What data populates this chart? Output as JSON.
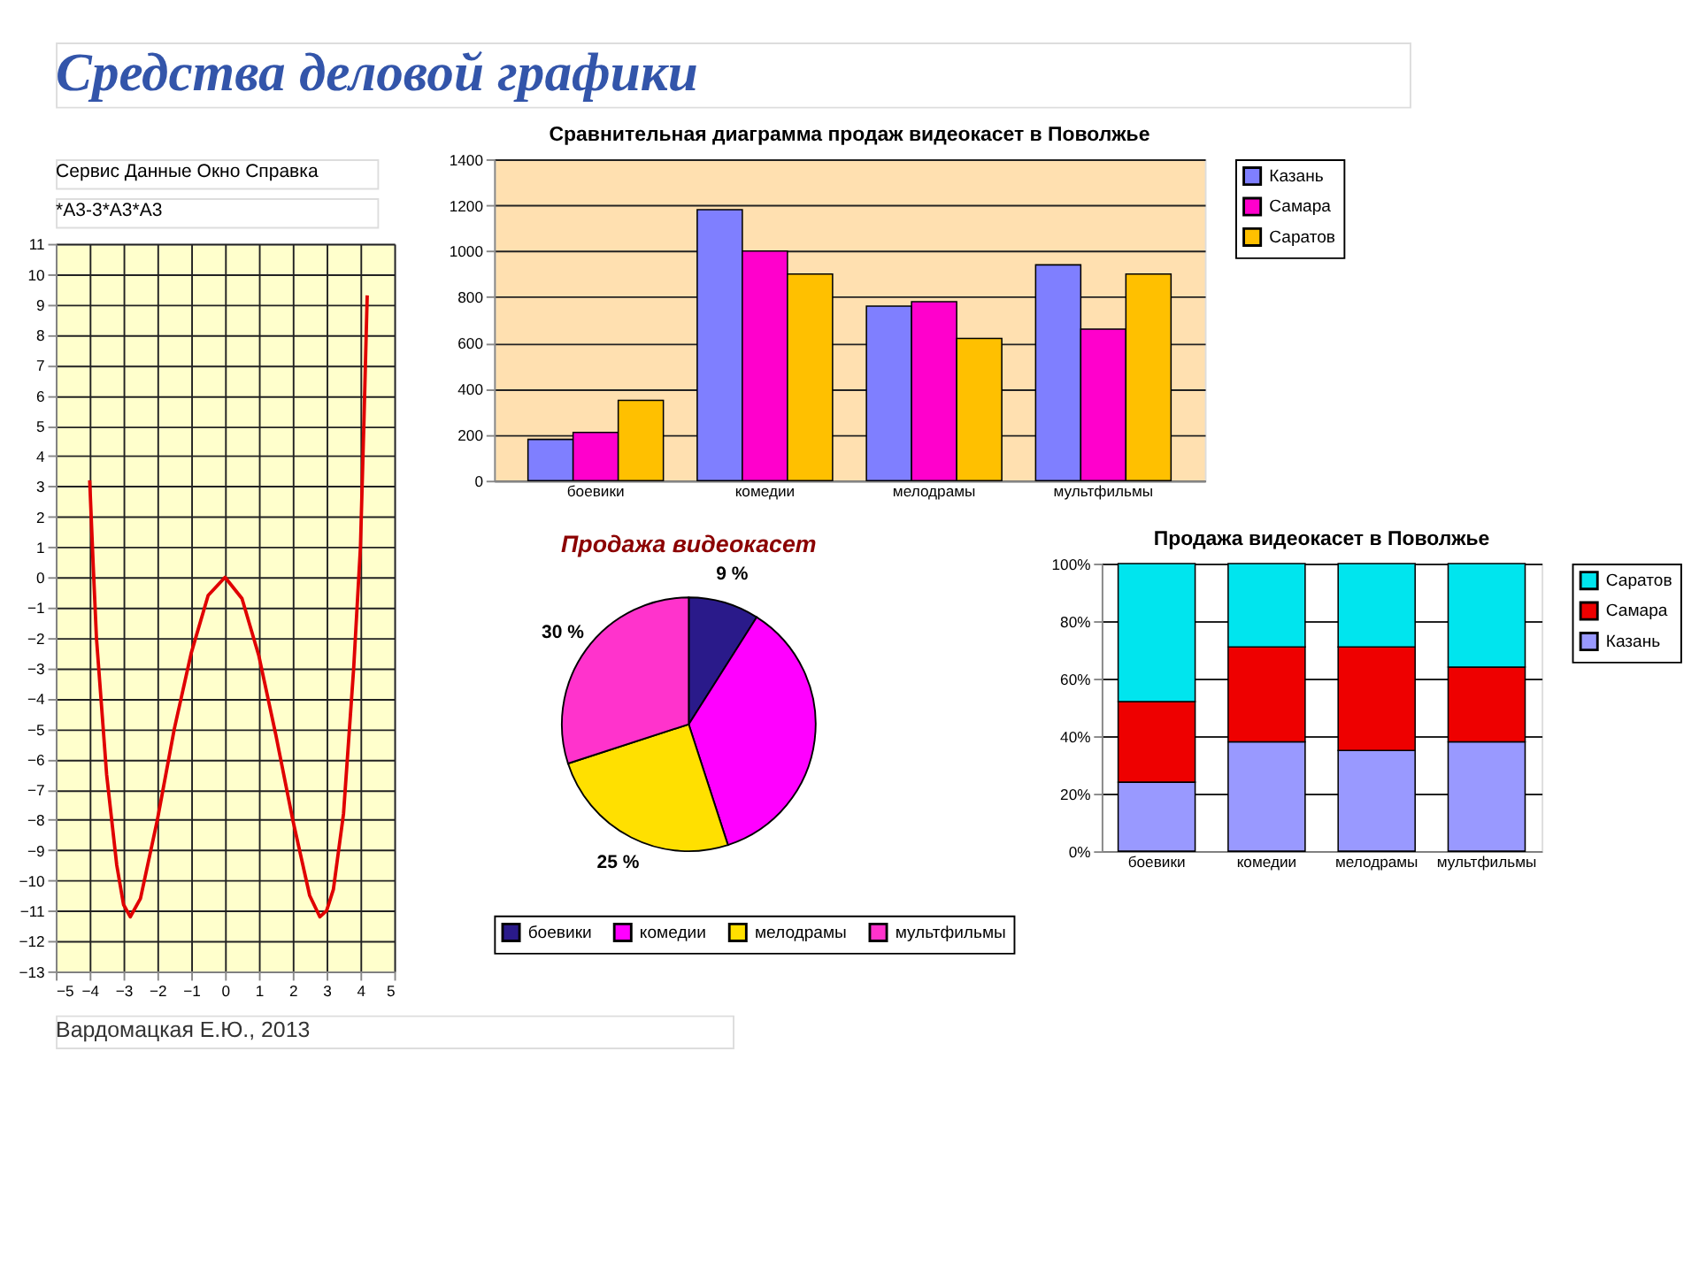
{
  "chart_data": [
    {
      "type": "line",
      "title": "Средства деловой графики",
      "annotations": [
        "Сервис   Данные   Окно   Справка",
        "*A3-3*A3*A3",
        "Вардомацкая Е.Ю., 2013"
      ],
      "series": [
        {
          "color": "#e00000",
          "x": [
            -4.0,
            -3.9,
            -3.8,
            -3.5,
            -3.2,
            -3.0,
            -2.8,
            -2.5,
            -2.0,
            -1.5,
            -1.0,
            -0.5,
            0.0,
            0.5,
            1.0,
            1.5,
            2.0,
            2.5,
            2.8,
            3.0,
            3.2,
            3.5,
            3.8,
            4.0,
            4.1,
            4.2
          ],
          "values": [
            3.2,
            0.5,
            -2.0,
            -6.5,
            -9.5,
            -10.8,
            -11.2,
            -10.6,
            -8.0,
            -5.0,
            -2.5,
            -0.6,
            0.0,
            -0.7,
            -2.6,
            -5.2,
            -8.0,
            -10.5,
            -11.2,
            -11.0,
            -10.3,
            -7.8,
            -3.0,
            1.0,
            5.0,
            9.3
          ]
        }
      ],
      "xlim": [
        -5,
        5
      ],
      "xticks": [
        -5,
        -4,
        -3,
        -2,
        -1,
        0,
        1,
        2,
        3,
        4,
        5
      ],
      "ylim": [
        -13,
        11
      ],
      "yticks": [
        -13,
        -12,
        -11,
        -10,
        -9,
        -8,
        -7,
        -6,
        -5,
        -4,
        -3,
        -2,
        -1,
        0,
        1,
        2,
        3,
        4,
        5,
        6,
        7,
        8,
        9,
        10,
        11
      ],
      "grid": true,
      "marker": "none",
      "line_style": "solid"
    },
    {
      "type": "bar",
      "title": "Сравнительная диаграмма продаж видеокасет в Поволжье",
      "categories": [
        "боевики",
        "комедии",
        "мелодрамы",
        "мультфильмы"
      ],
      "series": [
        {
          "name": "Казань",
          "color": "#7f7fff",
          "values": [
            180,
            1180,
            760,
            940
          ]
        },
        {
          "name": "Самара",
          "color": "#ff00cc",
          "values": [
            210,
            1000,
            780,
            660
          ]
        },
        {
          "name": "Саратов",
          "color": "#ffc000",
          "values": [
            350,
            900,
            620,
            900
          ]
        }
      ],
      "ylim": [
        0,
        1400
      ],
      "yticks": [
        0,
        200,
        400,
        600,
        800,
        1000,
        1200,
        1400
      ],
      "grid": "y",
      "legend": "right"
    },
    {
      "type": "pie",
      "title": "Продажа видеокасет",
      "categories": [
        "боевики",
        "комедии",
        "мелодрамы",
        "мультфильмы"
      ],
      "values": [
        9,
        36,
        25,
        30
      ],
      "colors": [
        "#2a1a8a",
        "#ff00ff",
        "#ffe000",
        "#ff33cc"
      ],
      "value_labels": [
        "9 %",
        null,
        "25 %",
        "30 %"
      ],
      "legend": "bottom"
    },
    {
      "type": "bar",
      "stacked": true,
      "title": "Продажа видеокасет в Поволжье",
      "categories": [
        "боевики",
        "комедии",
        "мелодрамы",
        "мультфильмы"
      ],
      "series": [
        {
          "name": "Казань",
          "color": "#9999ff",
          "values": [
            24,
            38,
            35,
            38
          ]
        },
        {
          "name": "Самара",
          "color": "#ee0000",
          "values": [
            28,
            33,
            36,
            26
          ]
        },
        {
          "name": "Саратов",
          "color": "#00e5ee",
          "values": [
            48,
            29,
            29,
            36
          ]
        }
      ],
      "ylim": [
        0,
        100
      ],
      "yticks": [
        {
          "value": 0,
          "label": "0%"
        },
        {
          "value": 20,
          "label": "20%"
        },
        {
          "value": 40,
          "label": "40%"
        },
        {
          "value": 60,
          "label": "60%"
        },
        {
          "value": 80,
          "label": "80%"
        },
        {
          "value": 100,
          "label": "100%"
        }
      ],
      "grid": "y",
      "legend": "right"
    }
  ]
}
